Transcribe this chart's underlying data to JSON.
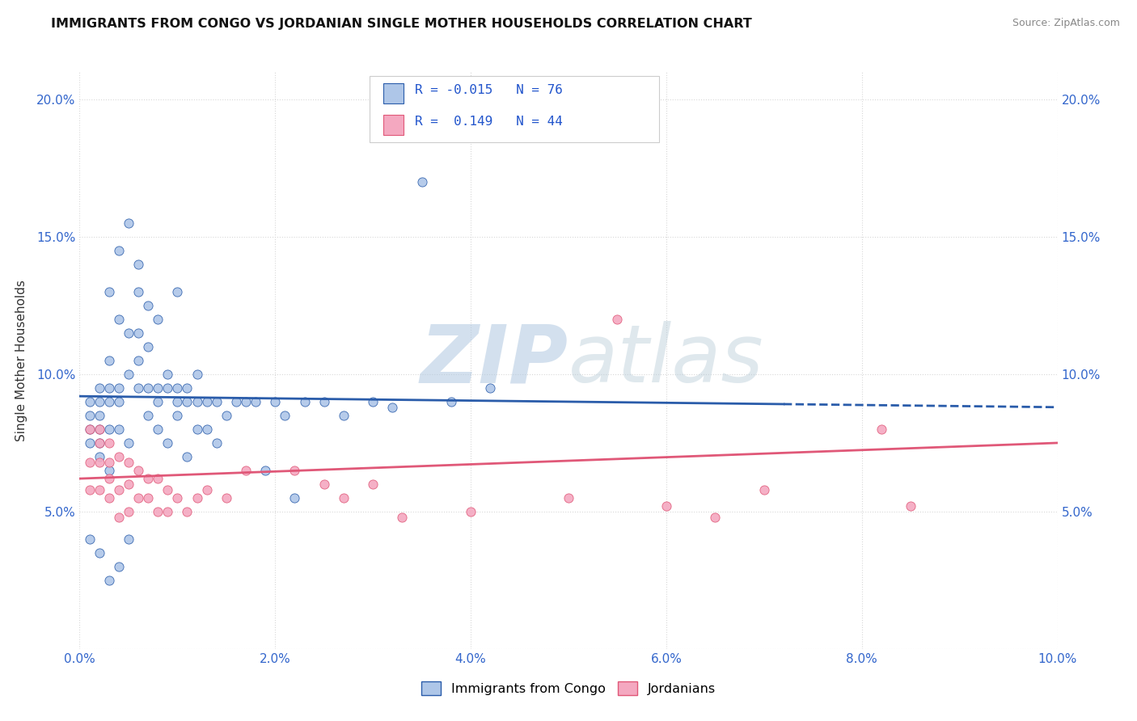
{
  "title": "IMMIGRANTS FROM CONGO VS JORDANIAN SINGLE MOTHER HOUSEHOLDS CORRELATION CHART",
  "source": "Source: ZipAtlas.com",
  "ylabel": "Single Mother Households",
  "xlim": [
    0.0,
    0.1
  ],
  "ylim": [
    0.0,
    0.21
  ],
  "congo_color": "#aec6e8",
  "jordan_color": "#f4a8c0",
  "congo_line_color": "#2a5caa",
  "jordan_line_color": "#e05878",
  "stat_color": "#2255cc",
  "watermark_color": "#c8d8e8",
  "background_color": "#ffffff",
  "grid_color": "#d8d8d8",
  "congo_x": [
    0.001,
    0.001,
    0.001,
    0.001,
    0.001,
    0.002,
    0.002,
    0.002,
    0.002,
    0.002,
    0.002,
    0.003,
    0.003,
    0.003,
    0.003,
    0.003,
    0.003,
    0.004,
    0.004,
    0.004,
    0.004,
    0.004,
    0.005,
    0.005,
    0.005,
    0.005,
    0.006,
    0.006,
    0.006,
    0.006,
    0.006,
    0.007,
    0.007,
    0.007,
    0.007,
    0.008,
    0.008,
    0.008,
    0.008,
    0.009,
    0.009,
    0.009,
    0.01,
    0.01,
    0.01,
    0.01,
    0.011,
    0.011,
    0.011,
    0.012,
    0.012,
    0.012,
    0.013,
    0.013,
    0.014,
    0.014,
    0.015,
    0.016,
    0.017,
    0.018,
    0.019,
    0.02,
    0.021,
    0.022,
    0.023,
    0.025,
    0.027,
    0.03,
    0.032,
    0.035,
    0.038,
    0.042,
    0.002,
    0.003,
    0.004,
    0.005
  ],
  "congo_y": [
    0.09,
    0.085,
    0.08,
    0.075,
    0.04,
    0.095,
    0.09,
    0.085,
    0.08,
    0.075,
    0.07,
    0.13,
    0.105,
    0.095,
    0.09,
    0.08,
    0.065,
    0.145,
    0.12,
    0.095,
    0.09,
    0.08,
    0.155,
    0.115,
    0.1,
    0.075,
    0.14,
    0.13,
    0.115,
    0.105,
    0.095,
    0.125,
    0.11,
    0.095,
    0.085,
    0.12,
    0.095,
    0.09,
    0.08,
    0.1,
    0.095,
    0.075,
    0.13,
    0.095,
    0.09,
    0.085,
    0.095,
    0.09,
    0.07,
    0.1,
    0.09,
    0.08,
    0.09,
    0.08,
    0.09,
    0.075,
    0.085,
    0.09,
    0.09,
    0.09,
    0.065,
    0.09,
    0.085,
    0.055,
    0.09,
    0.09,
    0.085,
    0.09,
    0.088,
    0.17,
    0.09,
    0.095,
    0.035,
    0.025,
    0.03,
    0.04
  ],
  "jordan_x": [
    0.001,
    0.001,
    0.001,
    0.002,
    0.002,
    0.002,
    0.002,
    0.003,
    0.003,
    0.003,
    0.003,
    0.004,
    0.004,
    0.004,
    0.005,
    0.005,
    0.005,
    0.006,
    0.006,
    0.007,
    0.007,
    0.008,
    0.008,
    0.009,
    0.009,
    0.01,
    0.011,
    0.012,
    0.013,
    0.015,
    0.017,
    0.022,
    0.025,
    0.027,
    0.03,
    0.033,
    0.04,
    0.05,
    0.055,
    0.06,
    0.065,
    0.07,
    0.082,
    0.085
  ],
  "jordan_y": [
    0.08,
    0.068,
    0.058,
    0.08,
    0.075,
    0.068,
    0.058,
    0.075,
    0.068,
    0.062,
    0.055,
    0.07,
    0.058,
    0.048,
    0.068,
    0.06,
    0.05,
    0.065,
    0.055,
    0.062,
    0.055,
    0.062,
    0.05,
    0.058,
    0.05,
    0.055,
    0.05,
    0.055,
    0.058,
    0.055,
    0.065,
    0.065,
    0.06,
    0.055,
    0.06,
    0.048,
    0.05,
    0.055,
    0.12,
    0.052,
    0.048,
    0.058,
    0.08,
    0.052
  ],
  "congo_line_y_start": 0.092,
  "congo_line_y_end": 0.088,
  "jordan_line_y_start": 0.062,
  "jordan_line_y_end": 0.075
}
